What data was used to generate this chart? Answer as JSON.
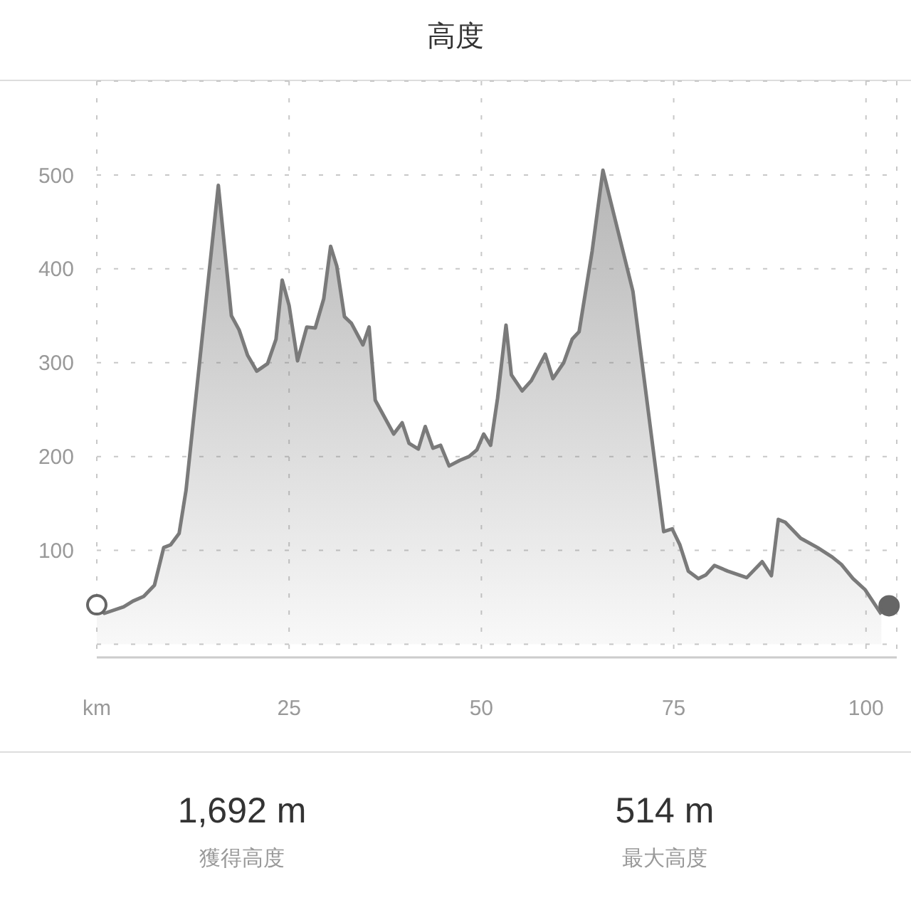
{
  "chart_data": {
    "type": "area",
    "title": "高度",
    "xlim": [
      0,
      104
    ],
    "xticks": [
      {
        "value": 0,
        "label": "km"
      },
      25,
      50,
      75,
      100
    ],
    "ylim": [
      -14,
      600
    ],
    "yticks": [
      {
        "value": 0,
        "label": null
      },
      100,
      200,
      300,
      400,
      500
    ],
    "grid": true,
    "series": [
      {
        "color": "#7a7a7a",
        "x": [
          0,
          1.0,
          3.5,
          4.7,
          6.1,
          7.5,
          8.7,
          9.6,
          10.7,
          11.6,
          15.8,
          17.5,
          18.5,
          19.6,
          20.8,
          22.2,
          23.3,
          24.1,
          25.0,
          26.1,
          27.3,
          28.4,
          29.5,
          30.4,
          31.2,
          32.2,
          33.1,
          34.6,
          35.4,
          36.2,
          38.6,
          39.7,
          40.6,
          41.8,
          42.7,
          43.7,
          44.7,
          45.8,
          47.2,
          48.4,
          49.4,
          50.3,
          51.2,
          52.1,
          53.2,
          53.9,
          55.3,
          56.5,
          58.3,
          59.3,
          60.7,
          61.8,
          62.7,
          64.4,
          65.8,
          69.7,
          73.7,
          74.8,
          75.8,
          76.9,
          78.2,
          79.2,
          80.3,
          82.0,
          84.5,
          86.5,
          87.7,
          88.6,
          89.5,
          91.5,
          93.7,
          95.6,
          96.8,
          98.3,
          99.9,
          102.0
        ],
        "values": [
          42,
          33,
          40,
          46,
          51,
          63,
          103,
          106,
          118,
          164,
          489,
          350,
          335,
          308,
          291,
          299,
          325,
          388,
          361,
          302,
          338,
          337,
          368,
          424,
          403,
          349,
          342,
          319,
          338,
          260,
          224,
          236,
          214,
          208,
          232,
          209,
          212,
          190,
          196,
          200,
          207,
          224,
          212,
          262,
          340,
          287,
          270,
          281,
          309,
          283,
          300,
          325,
          333,
          419,
          505,
          376,
          120,
          123,
          106,
          78,
          70,
          74,
          84,
          78,
          71,
          88,
          73,
          133,
          130,
          113,
          103,
          93,
          85,
          70,
          58,
          32
        ]
      },
      {
        "type": "scatter",
        "color": "#666666",
        "marker": "circle",
        "x": [
          0,
          103
        ],
        "values": [
          42,
          41
        ]
      }
    ],
    "annotations": [
      "1,692 m",
      "獲得高度",
      "514 m",
      "最大高度"
    ]
  }
}
